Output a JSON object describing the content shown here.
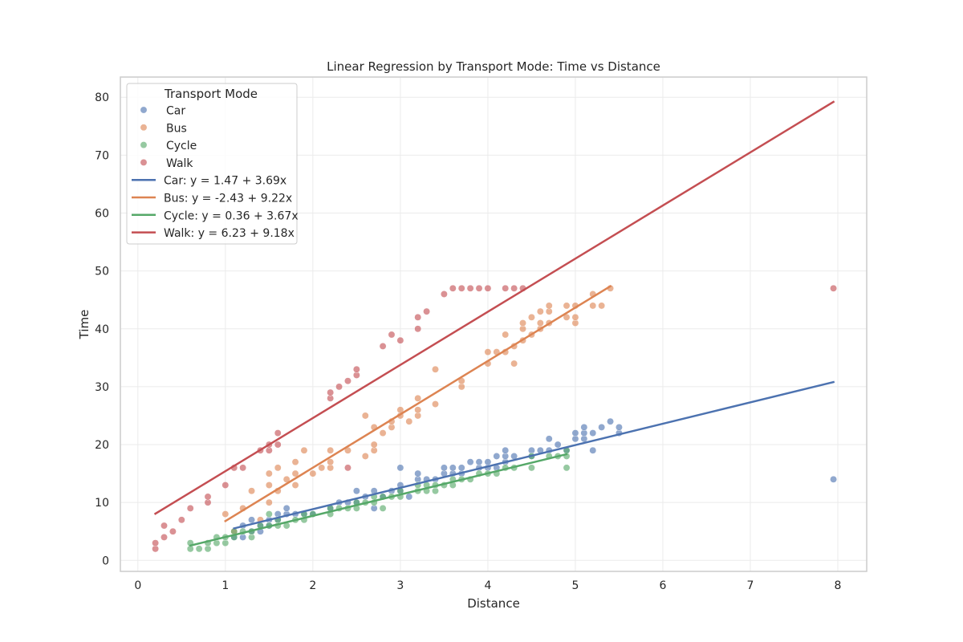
{
  "chart_data": {
    "type": "scatter",
    "title": "Linear Regression by Transport Mode: Time vs Distance",
    "xlabel": "Distance",
    "ylabel": "Time",
    "xlim": [
      -0.2,
      8.33
    ],
    "ylim": [
      -1.9,
      83.5
    ],
    "xticks": [
      "0",
      "1",
      "2",
      "3",
      "4",
      "5",
      "6",
      "7",
      "8"
    ],
    "yticks": [
      "0",
      "10",
      "20",
      "30",
      "40",
      "50",
      "60",
      "70",
      "80"
    ],
    "grid": true,
    "legend": {
      "title": "Transport Mode",
      "placement": "upper-left",
      "entries": [
        "Car",
        "Bus",
        "Cycle",
        "Walk",
        "Car: y = 1.47 + 3.69x",
        "Bus: y = -2.43 + 9.22x",
        "Cycle: y = 0.36 + 3.67x",
        "Walk: y = 6.23 + 9.18x"
      ]
    },
    "series": [
      {
        "name": "Car",
        "color": "#4c72b0",
        "points": [
          [
            1.1,
            4
          ],
          [
            1.2,
            4
          ],
          [
            1.2,
            6
          ],
          [
            1.3,
            5
          ],
          [
            1.3,
            7
          ],
          [
            1.4,
            5
          ],
          [
            1.4,
            6
          ],
          [
            1.5,
            6
          ],
          [
            1.5,
            7
          ],
          [
            1.6,
            7
          ],
          [
            1.6,
            8
          ],
          [
            1.7,
            8
          ],
          [
            1.7,
            9
          ],
          [
            1.8,
            8
          ],
          [
            1.9,
            8
          ],
          [
            2.0,
            8
          ],
          [
            2.2,
            9
          ],
          [
            2.3,
            10
          ],
          [
            2.4,
            10
          ],
          [
            2.5,
            10
          ],
          [
            2.5,
            12
          ],
          [
            2.6,
            11
          ],
          [
            2.7,
            9
          ],
          [
            2.7,
            12
          ],
          [
            2.8,
            11
          ],
          [
            2.9,
            12
          ],
          [
            3.0,
            12
          ],
          [
            3.0,
            13
          ],
          [
            3.0,
            16
          ],
          [
            3.1,
            11
          ],
          [
            3.2,
            14
          ],
          [
            3.2,
            15
          ],
          [
            3.3,
            14
          ],
          [
            3.4,
            14
          ],
          [
            3.5,
            15
          ],
          [
            3.5,
            16
          ],
          [
            3.6,
            15
          ],
          [
            3.6,
            16
          ],
          [
            3.7,
            15
          ],
          [
            3.7,
            16
          ],
          [
            3.8,
            17
          ],
          [
            3.9,
            16
          ],
          [
            3.9,
            17
          ],
          [
            4.0,
            16
          ],
          [
            4.0,
            17
          ],
          [
            4.1,
            16
          ],
          [
            4.1,
            18
          ],
          [
            4.2,
            17
          ],
          [
            4.2,
            18
          ],
          [
            4.2,
            19
          ],
          [
            4.3,
            18
          ],
          [
            4.5,
            18
          ],
          [
            4.5,
            19
          ],
          [
            4.6,
            19
          ],
          [
            4.7,
            19
          ],
          [
            4.7,
            21
          ],
          [
            4.8,
            20
          ],
          [
            4.9,
            19
          ],
          [
            5.0,
            21
          ],
          [
            5.0,
            22
          ],
          [
            5.1,
            21
          ],
          [
            5.1,
            22
          ],
          [
            5.1,
            23
          ],
          [
            5.2,
            19
          ],
          [
            5.2,
            22
          ],
          [
            5.3,
            23
          ],
          [
            5.4,
            24
          ],
          [
            5.5,
            22
          ],
          [
            5.5,
            23
          ],
          [
            7.95,
            14
          ]
        ],
        "regression": {
          "label": "Car: y = 1.47 + 3.69x",
          "intercept": 1.47,
          "slope": 3.69,
          "x_range": [
            1.1,
            7.95
          ]
        }
      },
      {
        "name": "Bus",
        "color": "#dd8452",
        "points": [
          [
            1.0,
            8
          ],
          [
            1.1,
            5
          ],
          [
            1.2,
            9
          ],
          [
            1.3,
            12
          ],
          [
            1.4,
            7
          ],
          [
            1.5,
            10
          ],
          [
            1.5,
            13
          ],
          [
            1.5,
            15
          ],
          [
            1.6,
            12
          ],
          [
            1.6,
            16
          ],
          [
            1.7,
            14
          ],
          [
            1.8,
            13
          ],
          [
            1.8,
            15
          ],
          [
            1.8,
            17
          ],
          [
            1.9,
            19
          ],
          [
            2.0,
            15
          ],
          [
            2.1,
            16
          ],
          [
            2.2,
            16
          ],
          [
            2.2,
            17
          ],
          [
            2.2,
            19
          ],
          [
            2.4,
            19
          ],
          [
            2.6,
            18
          ],
          [
            2.6,
            25
          ],
          [
            2.7,
            19
          ],
          [
            2.7,
            20
          ],
          [
            2.7,
            23
          ],
          [
            2.8,
            22
          ],
          [
            2.9,
            23
          ],
          [
            2.9,
            24
          ],
          [
            3.0,
            25
          ],
          [
            3.0,
            26
          ],
          [
            3.1,
            24
          ],
          [
            3.2,
            25
          ],
          [
            3.2,
            26
          ],
          [
            3.2,
            28
          ],
          [
            3.4,
            27
          ],
          [
            3.4,
            33
          ],
          [
            3.7,
            30
          ],
          [
            3.7,
            31
          ],
          [
            4.0,
            34
          ],
          [
            4.0,
            36
          ],
          [
            4.1,
            36
          ],
          [
            4.2,
            36
          ],
          [
            4.2,
            39
          ],
          [
            4.3,
            34
          ],
          [
            4.3,
            37
          ],
          [
            4.4,
            38
          ],
          [
            4.4,
            40
          ],
          [
            4.4,
            41
          ],
          [
            4.5,
            39
          ],
          [
            4.5,
            42
          ],
          [
            4.6,
            40
          ],
          [
            4.6,
            41
          ],
          [
            4.6,
            43
          ],
          [
            4.7,
            41
          ],
          [
            4.7,
            43
          ],
          [
            4.7,
            44
          ],
          [
            4.9,
            42
          ],
          [
            4.9,
            44
          ],
          [
            5.0,
            41
          ],
          [
            5.0,
            42
          ],
          [
            5.0,
            44
          ],
          [
            5.2,
            44
          ],
          [
            5.2,
            46
          ],
          [
            5.3,
            44
          ],
          [
            5.4,
            47
          ]
        ],
        "regression": {
          "label": "Bus: y = -2.43 + 9.22x",
          "intercept": -2.43,
          "slope": 9.22,
          "x_range": [
            1.0,
            5.4
          ]
        }
      },
      {
        "name": "Cycle",
        "color": "#55a868",
        "points": [
          [
            0.6,
            2
          ],
          [
            0.6,
            3
          ],
          [
            0.7,
            2
          ],
          [
            0.8,
            2
          ],
          [
            0.8,
            3
          ],
          [
            0.9,
            3
          ],
          [
            0.9,
            4
          ],
          [
            1.0,
            3
          ],
          [
            1.0,
            4
          ],
          [
            1.1,
            4
          ],
          [
            1.1,
            5
          ],
          [
            1.2,
            5
          ],
          [
            1.3,
            4
          ],
          [
            1.3,
            5
          ],
          [
            1.4,
            6
          ],
          [
            1.5,
            6
          ],
          [
            1.5,
            8
          ],
          [
            1.6,
            6
          ],
          [
            1.6,
            7
          ],
          [
            1.7,
            6
          ],
          [
            1.8,
            7
          ],
          [
            1.9,
            7
          ],
          [
            1.9,
            8
          ],
          [
            2.0,
            8
          ],
          [
            2.2,
            8
          ],
          [
            2.2,
            9
          ],
          [
            2.3,
            9
          ],
          [
            2.4,
            9
          ],
          [
            2.5,
            9
          ],
          [
            2.5,
            10
          ],
          [
            2.6,
            10
          ],
          [
            2.7,
            10
          ],
          [
            2.7,
            11
          ],
          [
            2.8,
            9
          ],
          [
            2.8,
            11
          ],
          [
            2.9,
            11
          ],
          [
            3.0,
            11
          ],
          [
            3.0,
            12
          ],
          [
            3.2,
            12
          ],
          [
            3.2,
            13
          ],
          [
            3.3,
            12
          ],
          [
            3.3,
            13
          ],
          [
            3.4,
            12
          ],
          [
            3.4,
            13
          ],
          [
            3.5,
            13
          ],
          [
            3.6,
            13
          ],
          [
            3.6,
            14
          ],
          [
            3.7,
            14
          ],
          [
            3.8,
            14
          ],
          [
            3.9,
            15
          ],
          [
            4.0,
            15
          ],
          [
            4.1,
            15
          ],
          [
            4.2,
            16
          ],
          [
            4.3,
            16
          ],
          [
            4.5,
            16
          ],
          [
            4.5,
            18
          ],
          [
            4.7,
            18
          ],
          [
            4.8,
            18
          ],
          [
            4.9,
            16
          ],
          [
            4.9,
            18
          ],
          [
            4.9,
            19
          ]
        ],
        "regression": {
          "label": "Cycle: y = 0.36 + 3.67x",
          "intercept": 0.36,
          "slope": 3.67,
          "x_range": [
            0.6,
            4.9
          ]
        }
      },
      {
        "name": "Walk",
        "color": "#c44e52",
        "points": [
          [
            0.2,
            2
          ],
          [
            0.2,
            3
          ],
          [
            0.3,
            4
          ],
          [
            0.3,
            6
          ],
          [
            0.4,
            5
          ],
          [
            0.5,
            7
          ],
          [
            0.6,
            9
          ],
          [
            0.8,
            10
          ],
          [
            0.8,
            11
          ],
          [
            1.0,
            13
          ],
          [
            1.1,
            16
          ],
          [
            1.2,
            16
          ],
          [
            1.4,
            19
          ],
          [
            1.5,
            19
          ],
          [
            1.5,
            20
          ],
          [
            1.6,
            20
          ],
          [
            1.6,
            22
          ],
          [
            2.2,
            28
          ],
          [
            2.2,
            29
          ],
          [
            2.3,
            30
          ],
          [
            2.4,
            16
          ],
          [
            2.4,
            31
          ],
          [
            2.5,
            32
          ],
          [
            2.5,
            33
          ],
          [
            2.8,
            37
          ],
          [
            2.9,
            39
          ],
          [
            3.0,
            38
          ],
          [
            3.2,
            40
          ],
          [
            3.2,
            42
          ],
          [
            3.3,
            43
          ],
          [
            3.5,
            46
          ],
          [
            3.6,
            47
          ],
          [
            3.7,
            47
          ],
          [
            3.8,
            47
          ],
          [
            3.9,
            47
          ],
          [
            4.0,
            47
          ],
          [
            4.2,
            47
          ],
          [
            4.3,
            47
          ],
          [
            4.4,
            47
          ],
          [
            7.95,
            47
          ]
        ],
        "regression": {
          "label": "Walk: y = 6.23 + 9.18x",
          "intercept": 6.23,
          "slope": 9.18,
          "x_range": [
            0.2,
            7.95
          ]
        }
      }
    ]
  }
}
